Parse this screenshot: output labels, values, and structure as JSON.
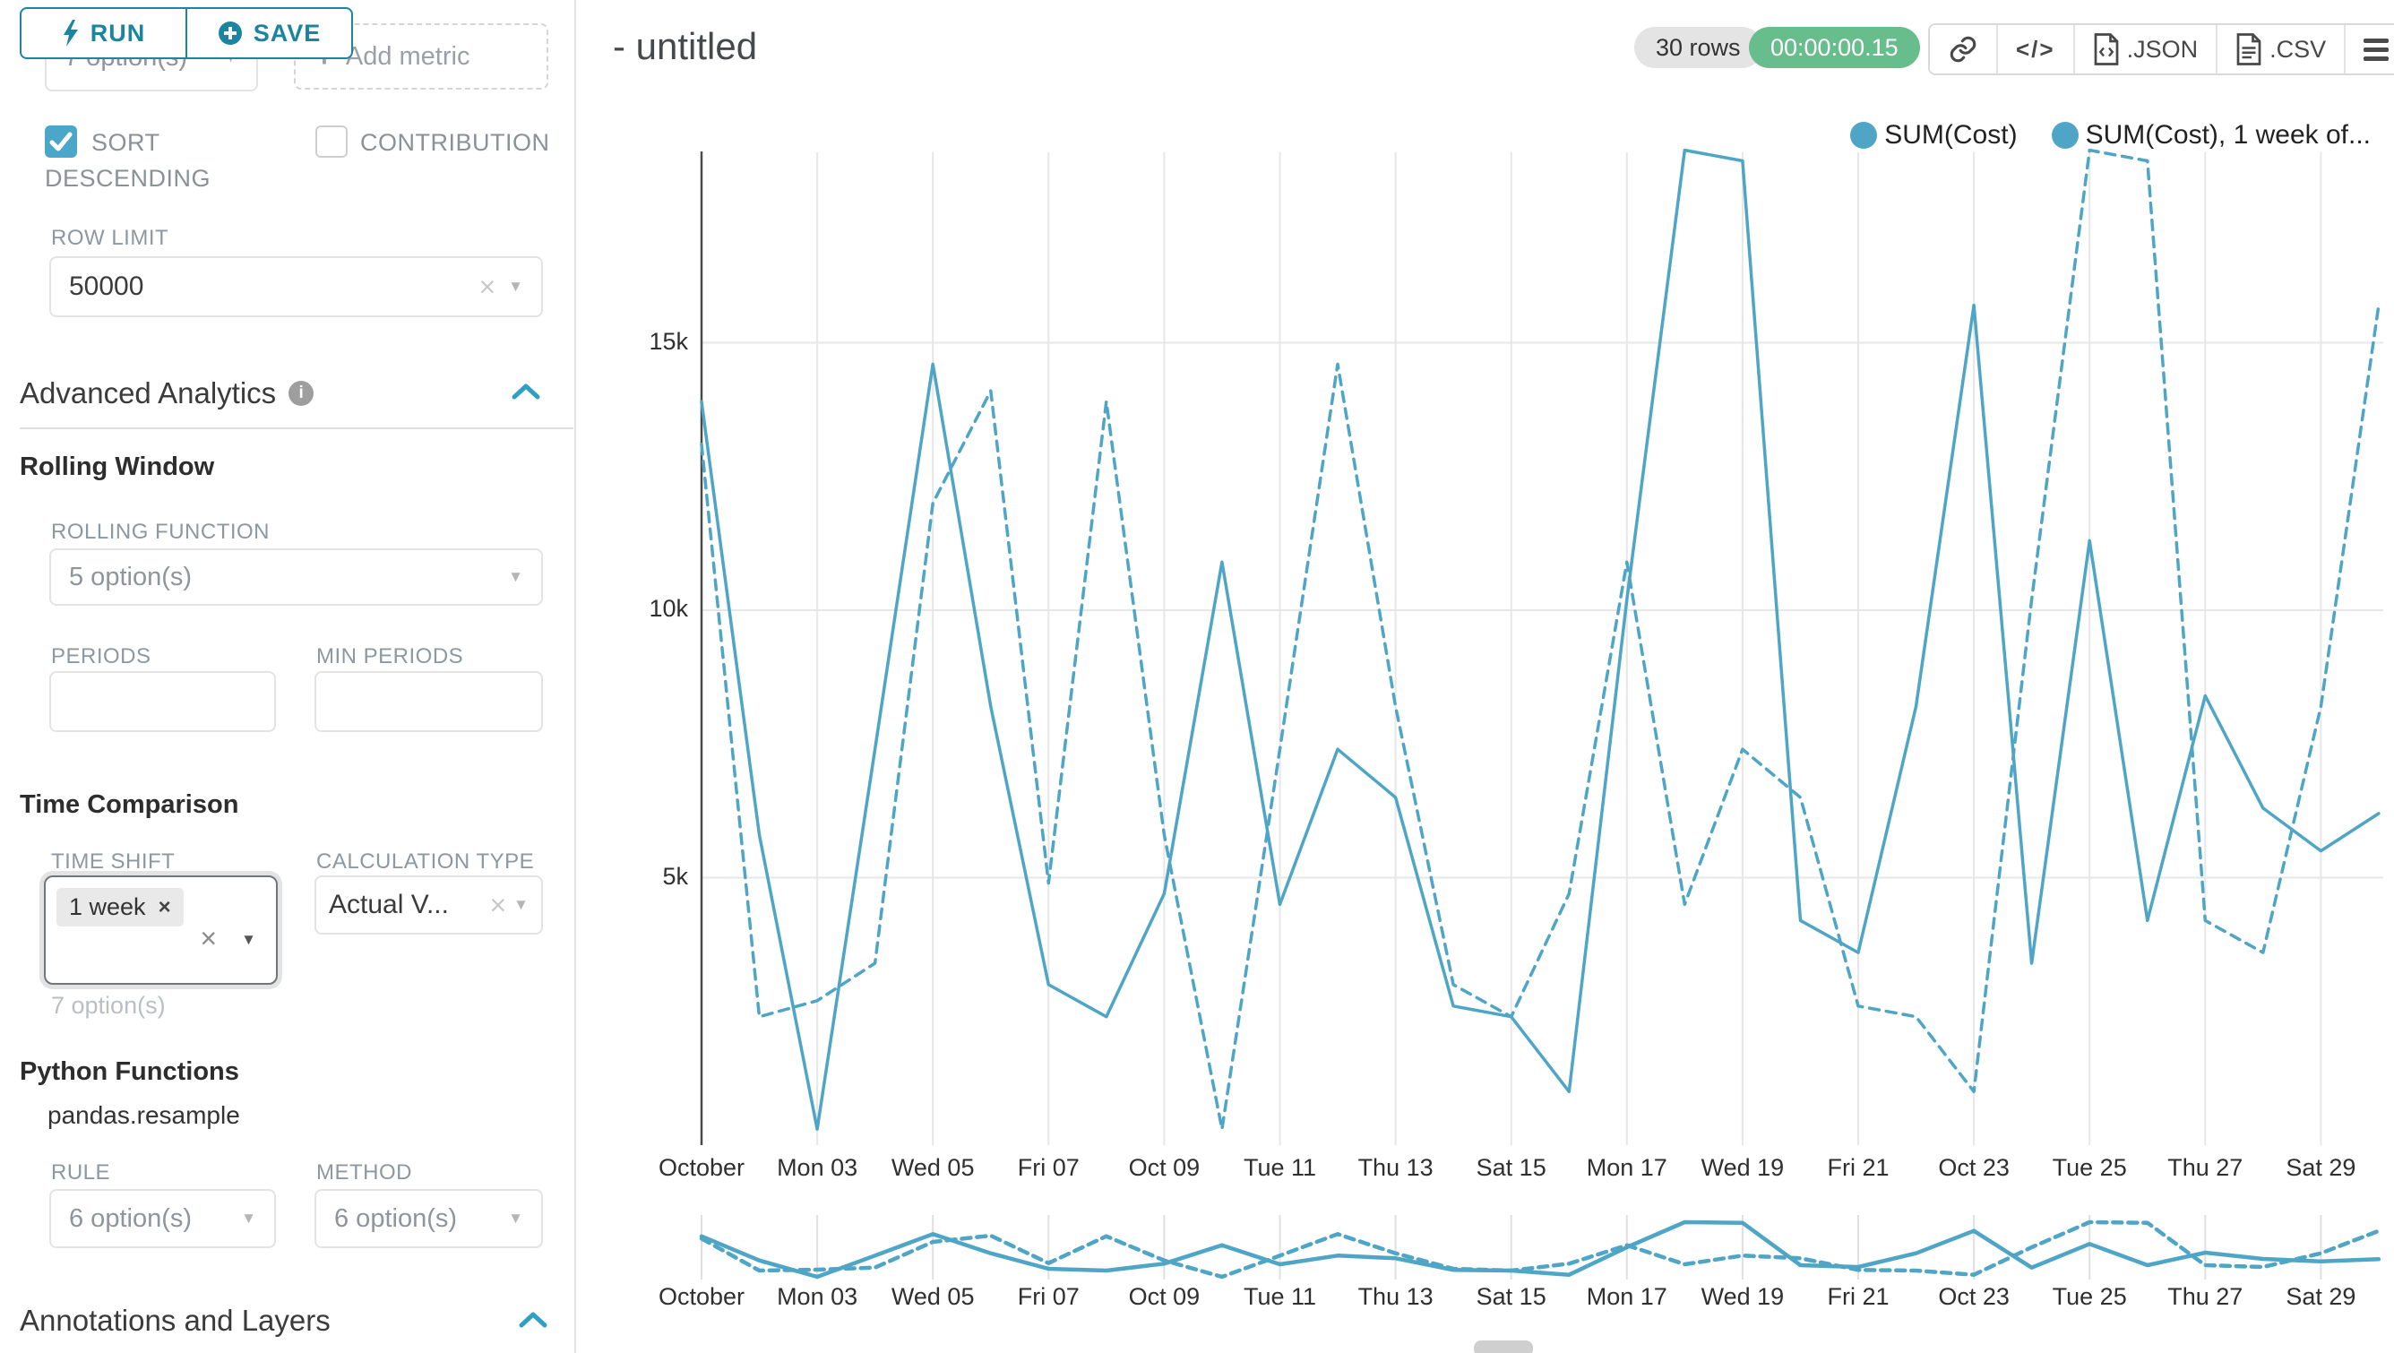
{
  "icons": {
    "caret": "▼",
    "clear": "×",
    "plus": "+",
    "code": "</>",
    "info": "i",
    "tag_remove": "×"
  },
  "sidebar": {
    "run_label": "RUN",
    "save_label": "SAVE",
    "metrics_select_value": "7 option(s)",
    "add_metric_label": "Add metric",
    "sort_descending_line1": "SORT",
    "sort_descending_line2": "DESCENDING",
    "contribution_label": "CONTRIBUTION",
    "row_limit": {
      "label": "ROW LIMIT",
      "value": "50000"
    },
    "advanced_analytics_title": "Advanced Analytics",
    "rolling_window": {
      "title": "Rolling Window",
      "rolling_function_label": "ROLLING FUNCTION",
      "rolling_function_value": "5 option(s)",
      "periods_label": "PERIODS",
      "min_periods_label": "MIN PERIODS"
    },
    "time_comparison": {
      "title": "Time Comparison",
      "time_shift_label": "TIME SHIFT",
      "time_shift_tag": "1 week",
      "time_shift_hint": "7 option(s)",
      "calculation_type_label": "CALCULATION TYPE",
      "calculation_type_value": "Actual V..."
    },
    "python_functions": {
      "title": "Python Functions",
      "subtitle": "pandas.resample",
      "rule_label": "RULE",
      "rule_value": "6 option(s)",
      "method_label": "METHOD",
      "method_value": "6 option(s)"
    },
    "annotations_title": "Annotations and Layers"
  },
  "header": {
    "title": "- untitled",
    "row_count": "30 rows",
    "timer": "00:00:00.15",
    "json_label": ".JSON",
    "csv_label": ".CSV"
  },
  "chart_data": {
    "type": "line",
    "title": "- untitled",
    "x_start_date": "October 01",
    "x_tick_labels": [
      "October",
      "Mon 03",
      "Wed 05",
      "Fri 07",
      "Oct 09",
      "Tue 11",
      "Thu 13",
      "Sat 15",
      "Mon 17",
      "Wed 19",
      "Fri 21",
      "Oct 23",
      "Tue 25",
      "Thu 27",
      "Sat 29"
    ],
    "x_tick_every_days": 2,
    "y_ticks": [
      {
        "v": 5000,
        "label": "5k"
      },
      {
        "v": 10000,
        "label": "10k"
      },
      {
        "v": 15000,
        "label": "15k"
      }
    ],
    "ylim": [
      0,
      18800
    ],
    "grid": true,
    "legend_position": "top-right",
    "legend": [
      "SUM(Cost)",
      "SUM(Cost), 1 week of..."
    ],
    "color": "#4fa5c6",
    "series": [
      {
        "name": "SUM(Cost)",
        "line_style": "solid",
        "values": [
          13900,
          5800,
          300,
          7400,
          14600,
          8200,
          3000,
          2400,
          4700,
          10900,
          4500,
          7400,
          6500,
          2600,
          2400,
          1000,
          10200,
          18600,
          18400,
          4200,
          3600,
          8200,
          15700,
          3400,
          11300,
          4200,
          8400,
          6300,
          5500,
          6200
        ]
      },
      {
        "name": "SUM(Cost), 1 week offset",
        "line_style": "dashed",
        "values": [
          13100,
          2400,
          2700,
          3400,
          12000,
          14100,
          4900,
          13900,
          5800,
          300,
          7400,
          14600,
          8200,
          3000,
          2400,
          4700,
          10900,
          4500,
          7400,
          6500,
          2600,
          2400,
          1000,
          10200,
          18600,
          18400,
          4200,
          3600,
          8200,
          15700
        ]
      }
    ],
    "has_mini_preview_chart": true
  }
}
